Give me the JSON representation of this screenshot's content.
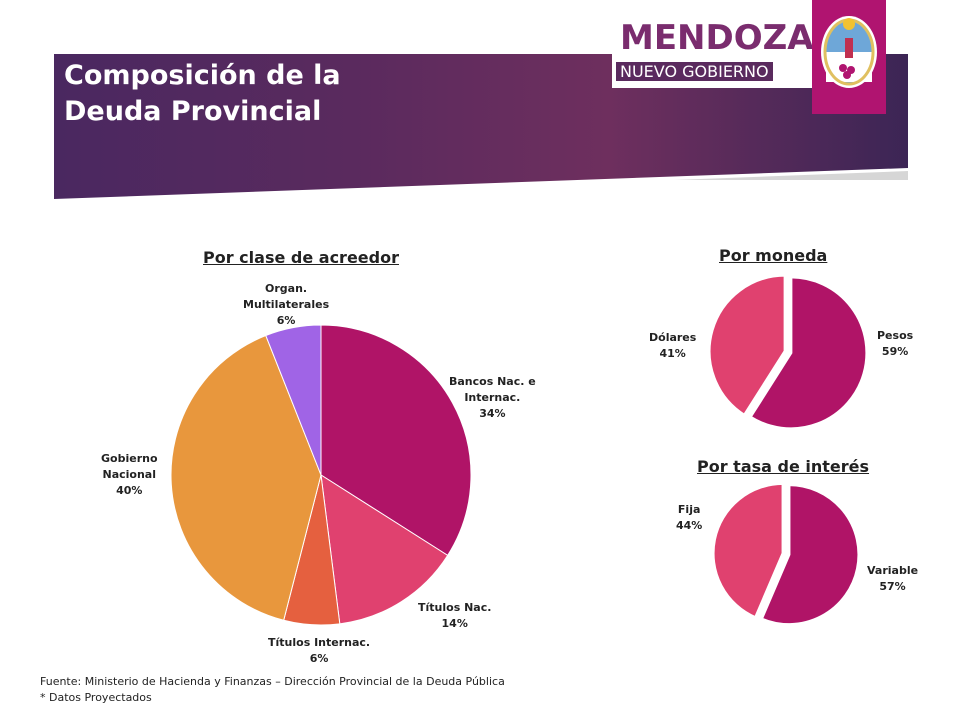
{
  "slide": {
    "title_line1": "Composición de la",
    "title_line2": "Deuda Provincial",
    "logo_line1": "MENDOZA",
    "logo_line2": "NUEVO GOBIERNO",
    "source": "Fuente: Ministerio de Hacienda y Finanzas – Dirección Provincial de la Deuda Pública",
    "note": "* Datos Proyectados"
  },
  "colors": {
    "magenta": "#b01467",
    "pink": "#e0416f",
    "orange_red": "#e5603f",
    "orange": "#e8973d",
    "violet": "#a064e6",
    "header_purple": "#5a2a5e",
    "brand_box": "#b01470"
  },
  "chart_data": [
    {
      "type": "pie",
      "title": "Por clase de acreedor",
      "slices": [
        {
          "label_lines": [
            "Bancos Nac. e",
            "Internac."
          ],
          "pct_label": "34%",
          "value": 34,
          "color": "#b01467"
        },
        {
          "label_lines": [
            "Títulos Nac."
          ],
          "pct_label": "14%",
          "value": 14,
          "color": "#e0416f"
        },
        {
          "label_lines": [
            "Títulos Internac."
          ],
          "pct_label": "6%",
          "value": 6,
          "color": "#e5603f"
        },
        {
          "label_lines": [
            "Gobierno",
            "Nacional"
          ],
          "pct_label": "40%",
          "value": 40,
          "color": "#e8973d"
        },
        {
          "label_lines": [
            "Organ.",
            "Multilaterales"
          ],
          "pct_label": "6%",
          "value": 6,
          "color": "#a064e6"
        }
      ]
    },
    {
      "type": "pie",
      "title": "Por moneda",
      "slices": [
        {
          "label_lines": [
            "Pesos"
          ],
          "pct_label": "59%",
          "value": 59,
          "color": "#b01467"
        },
        {
          "label_lines": [
            "Dólares"
          ],
          "pct_label": "41%",
          "value": 41,
          "color": "#e0416f"
        }
      ]
    },
    {
      "type": "pie",
      "title": "Por tasa de interés",
      "slices": [
        {
          "label_lines": [
            "Variable"
          ],
          "pct_label": "57%",
          "value": 57,
          "color": "#b01467"
        },
        {
          "label_lines": [
            "Fija"
          ],
          "pct_label": "44%",
          "value": 44,
          "color": "#e0416f"
        }
      ]
    }
  ]
}
